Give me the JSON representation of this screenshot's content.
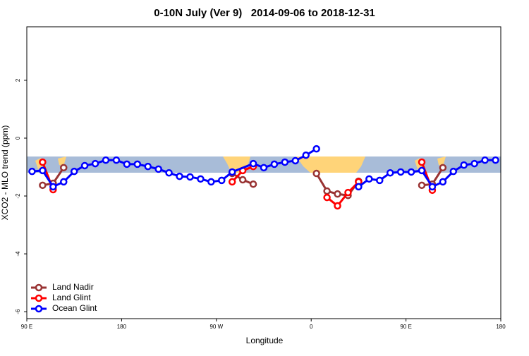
{
  "chart_data": {
    "type": "line",
    "title": "0-10N July (Ver 9)   2014-09-06 to 2018-12-31",
    "x_label": "Longitude",
    "y_label": "XCO2 - MLO trend (ppm)",
    "xlim": [
      90,
      540
    ],
    "ylim": [
      -6.24,
      3.85
    ],
    "xticks": [
      {
        "value": 90,
        "label": "90 E"
      },
      {
        "value": 180,
        "label": "180"
      },
      {
        "value": 270,
        "label": "90 W"
      },
      {
        "value": 360,
        "label": "0"
      },
      {
        "value": 450,
        "label": "90 E"
      },
      {
        "value": 540,
        "label": "180"
      }
    ],
    "yticks": [
      -6,
      -4,
      -2,
      0,
      2
    ],
    "legend": "bottom-left",
    "series": [
      {
        "name": "Land Nadir",
        "color": "#993333",
        "x": [
          105,
          115,
          125,
          200,
          285,
          295,
          305,
          335,
          365,
          375,
          385,
          395,
          405,
          435,
          465,
          475,
          485
        ],
        "values": [
          -1.63,
          -1.56,
          -1.02,
          null,
          -1.22,
          -1.44,
          -1.59,
          null,
          -1.22,
          -1.83,
          -1.93,
          -1.98,
          -1.49,
          null,
          -1.63,
          -1.59,
          -1.02
        ]
      },
      {
        "name": "Land Glint",
        "color": "#ff0000",
        "x": [
          105,
          115,
          200,
          285,
          295,
          305,
          335,
          375,
          385,
          395,
          405,
          435,
          465,
          475
        ],
        "values": [
          -0.83,
          -1.78,
          null,
          -1.51,
          -1.12,
          -0.98,
          null,
          -2.05,
          -2.34,
          -1.88,
          -1.51,
          null,
          -0.83,
          -1.8
        ]
      },
      {
        "name": "Ocean Glint",
        "color": "#0000ff",
        "x": [
          95,
          105,
          115,
          125,
          135,
          145,
          155,
          165,
          175,
          185,
          195,
          205,
          215,
          225,
          235,
          245,
          255,
          265,
          275,
          285,
          305,
          315,
          325,
          335,
          345,
          355,
          365,
          385,
          405,
          415,
          425,
          435,
          445,
          455,
          465,
          475,
          485,
          495,
          505,
          515,
          525,
          535
        ],
        "values": [
          -1.15,
          -1.12,
          -1.68,
          -1.51,
          -1.15,
          -0.95,
          -0.88,
          -0.76,
          -0.76,
          -0.9,
          -0.9,
          -0.98,
          -1.07,
          -1.2,
          -1.32,
          -1.34,
          -1.41,
          -1.51,
          -1.46,
          -1.17,
          -0.88,
          -1.02,
          -0.9,
          -0.83,
          -0.78,
          -0.59,
          -0.37,
          null,
          -1.68,
          -1.41,
          -1.46,
          -1.2,
          -1.17,
          -1.17,
          -1.12,
          -1.68,
          -1.51,
          -1.15,
          -0.93,
          -0.88,
          -0.76,
          -0.76
        ]
      }
    ]
  }
}
